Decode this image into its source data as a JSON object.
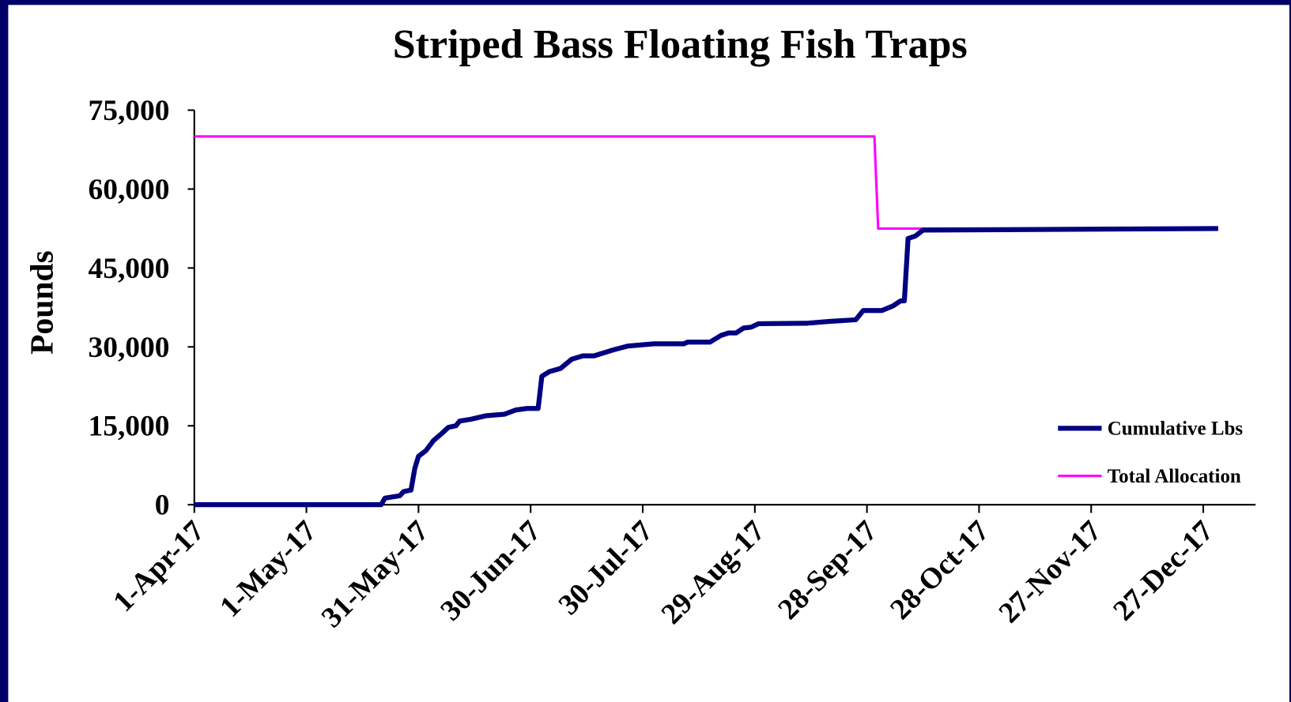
{
  "chart_data": {
    "type": "line",
    "title": "Striped Bass Floating Fish Traps",
    "ylabel": "Pounds",
    "xlim": [
      "2017-04-01",
      "2018-01-10"
    ],
    "xticks": [
      {
        "value": "2017-04-01",
        "label": "1-Apr-17"
      },
      {
        "value": "2017-05-01",
        "label": "1-May-17"
      },
      {
        "value": "2017-05-31",
        "label": "31-May-17"
      },
      {
        "value": "2017-06-30",
        "label": "30-Jun-17"
      },
      {
        "value": "2017-07-30",
        "label": "30-Jul-17"
      },
      {
        "value": "2017-08-29",
        "label": "29-Aug-17"
      },
      {
        "value": "2017-09-28",
        "label": "28-Sep-17"
      },
      {
        "value": "2017-10-28",
        "label": "28-Oct-17"
      },
      {
        "value": "2017-11-27",
        "label": "27-Nov-17"
      },
      {
        "value": "2017-12-27",
        "label": "27-Dec-17"
      }
    ],
    "ylim": [
      0,
      75000
    ],
    "yticks": [
      0,
      {
        "value": 15000,
        "label": "15,000"
      },
      {
        "value": 30000,
        "label": "30,000"
      },
      {
        "value": 45000,
        "label": "45,000"
      },
      {
        "value": 60000,
        "label": "60,000"
      },
      {
        "value": 75000,
        "label": "75,000"
      }
    ],
    "grid": false,
    "legend": "lower right",
    "series": [
      {
        "name": "Cumulative Lbs",
        "color": "#000080",
        "x": [
          "2017-04-01",
          "2017-05-21",
          "2017-05-22",
          "2017-05-26",
          "2017-05-27",
          "2017-05-29",
          "2017-05-30",
          "2017-05-31",
          "2017-06-02",
          "2017-06-04",
          "2017-06-06",
          "2017-06-08",
          "2017-06-10",
          "2017-06-11",
          "2017-06-14",
          "2017-06-18",
          "2017-06-23",
          "2017-06-26",
          "2017-06-29",
          "2017-07-02",
          "2017-07-03",
          "2017-07-05",
          "2017-07-08",
          "2017-07-11",
          "2017-07-14",
          "2017-07-17",
          "2017-07-22",
          "2017-07-26",
          "2017-08-02",
          "2017-08-10",
          "2017-08-11",
          "2017-08-17",
          "2017-08-20",
          "2017-08-22",
          "2017-08-24",
          "2017-08-26",
          "2017-08-28",
          "2017-08-30",
          "2017-09-12",
          "2017-09-18",
          "2017-09-25",
          "2017-09-27",
          "2017-10-02",
          "2017-10-05",
          "2017-10-07",
          "2017-10-08",
          "2017-10-09",
          "2017-10-11",
          "2017-10-13",
          "2017-12-31"
        ],
        "values": [
          0,
          0,
          1250,
          1700,
          2500,
          2800,
          6900,
          9200,
          10300,
          12200,
          13400,
          14700,
          15000,
          15900,
          16250,
          16900,
          17200,
          18000,
          18300,
          18300,
          24400,
          25300,
          25900,
          27650,
          28300,
          28300,
          29400,
          30150,
          30600,
          30600,
          30900,
          30900,
          32200,
          32650,
          32650,
          33600,
          33750,
          34400,
          34500,
          34850,
          35150,
          36900,
          36900,
          37800,
          38750,
          38750,
          50600,
          51100,
          52200,
          52500
        ]
      },
      {
        "name": "Total Allocation",
        "color": "#ff00ff",
        "x": [
          "2017-04-01",
          "2017-09-30",
          "2017-10-01",
          "2017-12-31"
        ],
        "values": [
          70000,
          70000,
          52500,
          52500
        ]
      }
    ]
  }
}
